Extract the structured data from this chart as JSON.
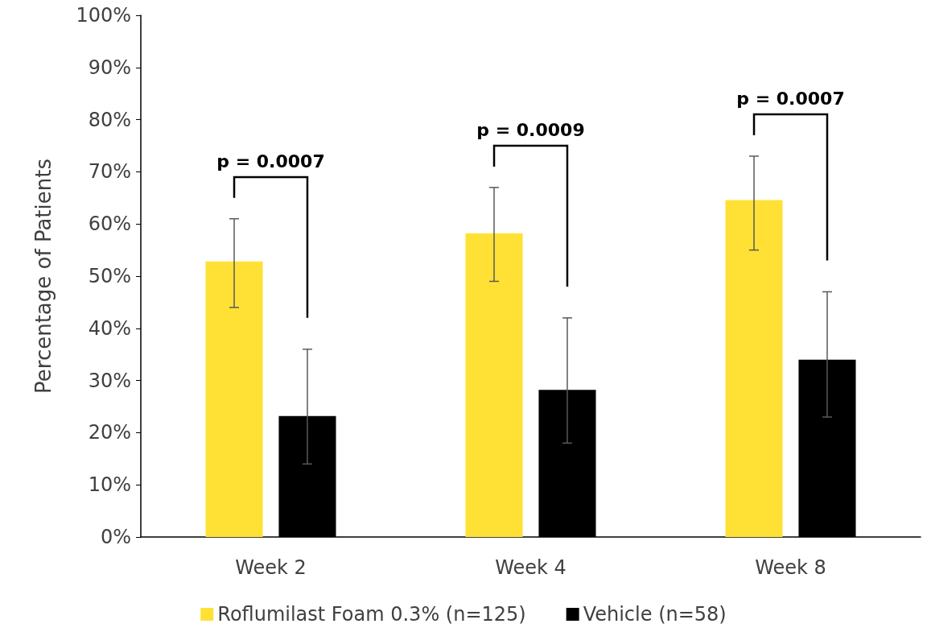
{
  "chart_data": {
    "type": "bar",
    "ylabel": "Percentage of Patients",
    "categories": [
      "Week 2",
      "Week 4",
      "Week 8"
    ],
    "series": [
      {
        "name": "Roflumilast Foam 0.3% (n=125)",
        "color": "#ffe135",
        "values": [
          52.8,
          58.2,
          64.6
        ],
        "errors": [
          [
            44,
            61
          ],
          [
            49,
            67
          ],
          [
            55,
            73
          ]
        ]
      },
      {
        "name": "Vehicle (n=58)",
        "color": "#000000",
        "values": [
          23.2,
          28.2,
          34
        ],
        "errors": [
          [
            14,
            36
          ],
          [
            18,
            42
          ],
          [
            23,
            47
          ]
        ]
      }
    ],
    "ylim": [
      0,
      100
    ],
    "yticks": [
      {
        "value": 0,
        "label": "0%"
      },
      {
        "value": 10,
        "label": "10%"
      },
      {
        "value": 20,
        "label": "20%"
      },
      {
        "value": 30,
        "label": "30%"
      },
      {
        "value": 40,
        "label": "40%"
      },
      {
        "value": 50,
        "label": "50%"
      },
      {
        "value": 60,
        "label": "60%"
      },
      {
        "value": 70,
        "label": "70%"
      },
      {
        "value": 80,
        "label": "80%"
      },
      {
        "value": 90,
        "label": "90%"
      },
      {
        "value": 100,
        "label": "100%"
      }
    ],
    "grid": false,
    "legend": "bottom",
    "annotations": [
      "p = 0.0007",
      "p = 0.0009",
      "p = 0.0007"
    ]
  }
}
